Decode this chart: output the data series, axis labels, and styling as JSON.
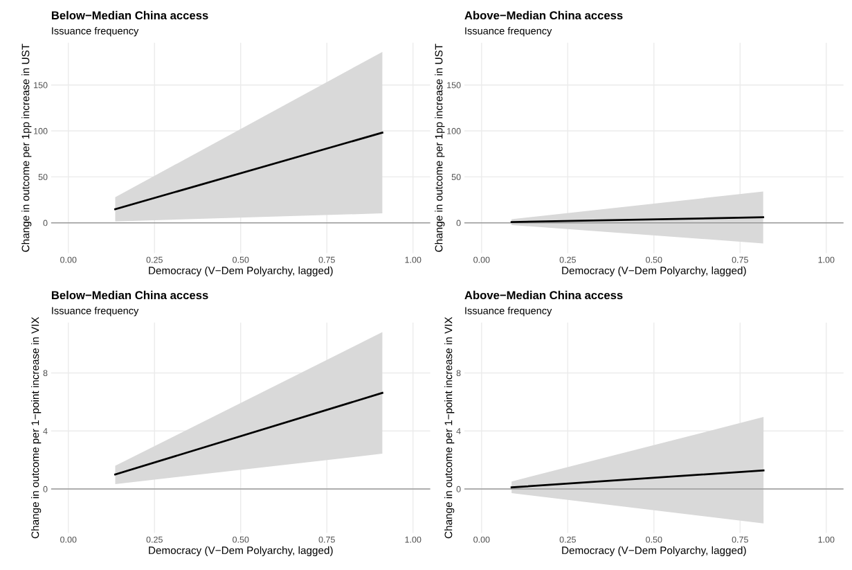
{
  "chart_data": [
    {
      "type": "line",
      "title": "Below−Median China access",
      "subtitle": "Issuance frequency",
      "xlabel": "Democracy (V−Dem Polyarchy, lagged)",
      "ylabel": "Change in outcome per 1pp increase in UST",
      "xlim": [
        -0.05,
        1.05
      ],
      "xticks": [
        {
          "value": 0,
          "label": "0.00"
        },
        {
          "value": 0.25,
          "label": "0.25"
        },
        {
          "value": 0.5,
          "label": "0.50"
        },
        {
          "value": 0.75,
          "label": "0.75"
        },
        {
          "value": 1,
          "label": "1.00"
        }
      ],
      "ylim": [
        -33,
        196
      ],
      "yticks": [
        0,
        50,
        100,
        150
      ],
      "grid": true,
      "series": [
        {
          "color": "#000000",
          "x": [
            0.136,
            0.911
          ],
          "values": [
            14.8,
            98.2
          ],
          "lower": [
            1.5,
            10.3
          ],
          "upper": [
            27.9,
            186
          ]
        }
      ],
      "ref_lines": [
        {
          "axis": "y",
          "value": 0,
          "color": "#999999"
        }
      ]
    },
    {
      "type": "line",
      "title": "Above−Median China access",
      "subtitle": "Issuance frequency",
      "xlabel": "Democracy (V−Dem Polyarchy, lagged)",
      "ylabel": "Change in outcome per 1pp increase in UST",
      "xlim": [
        -0.05,
        1.05
      ],
      "xticks": [
        {
          "value": 0,
          "label": "0.00"
        },
        {
          "value": 0.25,
          "label": "0.25"
        },
        {
          "value": 0.5,
          "label": "0.50"
        },
        {
          "value": 0.75,
          "label": "0.75"
        },
        {
          "value": 1,
          "label": "1.00"
        }
      ],
      "ylim": [
        -33,
        196
      ],
      "yticks": [
        0,
        50,
        100,
        150
      ],
      "grid": true,
      "series": [
        {
          "color": "#000000",
          "x": [
            0.087,
            0.817
          ],
          "values": [
            0.9,
            6
          ],
          "lower": [
            -2.4,
            -22.4
          ],
          "upper": [
            4,
            34
          ]
        }
      ],
      "ref_lines": [
        {
          "axis": "y",
          "value": 0,
          "color": "#999999"
        }
      ]
    },
    {
      "type": "line",
      "title": "Below−Median China access",
      "subtitle": "Issuance frequency",
      "xlabel": "Democracy (V−Dem Polyarchy, lagged)",
      "ylabel": "Change in outcome per 1−point increase in VIX",
      "xlim": [
        -0.05,
        1.05
      ],
      "xticks": [
        {
          "value": 0,
          "label": "0.00"
        },
        {
          "value": 0.25,
          "label": "0.25"
        },
        {
          "value": 0.5,
          "label": "0.50"
        },
        {
          "value": 0.75,
          "label": "0.75"
        },
        {
          "value": 1,
          "label": "1.00"
        }
      ],
      "ylim": [
        -3.03,
        11.47
      ],
      "yticks": [
        0,
        4,
        8
      ],
      "grid": true,
      "series": [
        {
          "color": "#000000",
          "x": [
            0.136,
            0.911
          ],
          "values": [
            1.0,
            6.62
          ],
          "lower": [
            0.34,
            2.43
          ],
          "upper": [
            1.6,
            10.81
          ]
        }
      ],
      "ref_lines": [
        {
          "axis": "y",
          "value": 0,
          "color": "#999999"
        }
      ]
    },
    {
      "type": "line",
      "title": "Above−Median China access",
      "subtitle": "Issuance frequency",
      "xlabel": "Democracy (V−Dem Polyarchy, lagged)",
      "ylabel": "Change in outcome per 1−point increase in VIX",
      "xlim": [
        -0.05,
        1.05
      ],
      "xticks": [
        {
          "value": 0,
          "label": "0.00"
        },
        {
          "value": 0.25,
          "label": "0.25"
        },
        {
          "value": 0.5,
          "label": "0.50"
        },
        {
          "value": 0.75,
          "label": "0.75"
        },
        {
          "value": 1,
          "label": "1.00"
        }
      ],
      "ylim": [
        -3.03,
        11.47
      ],
      "yticks": [
        0,
        4,
        8
      ],
      "grid": true,
      "series": [
        {
          "color": "#000000",
          "x": [
            0.087,
            0.818
          ],
          "values": [
            0.11,
            1.28
          ],
          "lower": [
            -0.29,
            -2.37
          ],
          "upper": [
            0.52,
            4.96
          ]
        }
      ],
      "ref_lines": [
        {
          "axis": "y",
          "value": 0,
          "color": "#999999"
        }
      ]
    }
  ]
}
